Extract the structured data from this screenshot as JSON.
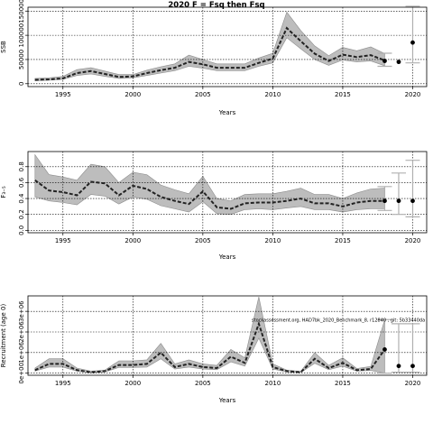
{
  "chart_data": {
    "title": "2020 F = Fsq then Fsq",
    "watermark": "stockassessment.org, HAD7bk_2020_Benchmark_8, r12840 , git: 5b33440da",
    "xlim": [
      1992.5,
      2021
    ],
    "x_ticks": [
      1995,
      2000,
      2005,
      2010,
      2015,
      2020
    ],
    "colors": {
      "band": "#bdbdbd",
      "band_edge": "#8c8c8c",
      "line": "#222222",
      "grid": "#000000",
      "point": "#000000",
      "whisker": "#b0b0b0"
    },
    "panels": [
      {
        "type": "line",
        "ylabel": "SSB",
        "xlabel": "Years",
        "ylim": [
          -6000,
          158000
        ],
        "y_ticks": [
          0,
          50000,
          100000,
          150000
        ],
        "y_ticklabels": [
          "0",
          "50000",
          "100000",
          "150000"
        ],
        "grid": true,
        "years": [
          1993,
          1994,
          1995,
          1996,
          1997,
          1998,
          1999,
          2000,
          2001,
          2002,
          2003,
          2004,
          2005,
          2006,
          2007,
          2008,
          2009,
          2010,
          2011,
          2012,
          2013,
          2014,
          2015,
          2016,
          2017,
          2018
        ],
        "values": [
          8000,
          9000,
          11000,
          22000,
          26000,
          20000,
          14000,
          15000,
          22000,
          28000,
          33000,
          45000,
          40000,
          33000,
          33000,
          33000,
          43000,
          52000,
          115000,
          88000,
          62000,
          47000,
          60000,
          55000,
          59000,
          48000
        ],
        "lower": [
          6000,
          7000,
          9000,
          17000,
          20000,
          15000,
          11000,
          12000,
          17000,
          22000,
          27000,
          36000,
          32000,
          27000,
          27000,
          27000,
          36000,
          43000,
          95000,
          72000,
          50000,
          38000,
          49000,
          45000,
          47000,
          37000
        ],
        "upper": [
          11000,
          12000,
          15000,
          29000,
          33000,
          26000,
          19000,
          19000,
          28000,
          35000,
          41000,
          59000,
          50000,
          41000,
          41000,
          41000,
          53000,
          63000,
          148000,
          110000,
          78000,
          58000,
          75000,
          68000,
          76000,
          62000
        ],
        "forecast": [
          {
            "year": 2018,
            "value": 47000,
            "lower": 36000,
            "upper": 63000
          },
          {
            "year": 2019,
            "value": 45000,
            "lower": 0,
            "upper": 0
          },
          {
            "year": 2020,
            "value": 85000,
            "lower": 43000,
            "upper": 160000
          }
        ]
      },
      {
        "type": "line",
        "ylabel": "F₃₋₅",
        "xlabel": "Years",
        "ylim": [
          -0.03,
          0.99
        ],
        "y_ticks": [
          0.0,
          0.2,
          0.4,
          0.6,
          0.8
        ],
        "y_ticklabels": [
          "0.0",
          "0.2",
          "0.4",
          "0.6",
          "0.8"
        ],
        "grid": true,
        "years": [
          1993,
          1994,
          1995,
          1996,
          1997,
          1998,
          1999,
          2000,
          2001,
          2002,
          2003,
          2004,
          2005,
          2006,
          2007,
          2008,
          2009,
          2010,
          2011,
          2012,
          2013,
          2014,
          2015,
          2016,
          2017,
          2018
        ],
        "values": [
          0.63,
          0.5,
          0.48,
          0.44,
          0.61,
          0.59,
          0.44,
          0.56,
          0.52,
          0.42,
          0.37,
          0.33,
          0.49,
          0.29,
          0.27,
          0.34,
          0.35,
          0.35,
          0.37,
          0.4,
          0.34,
          0.34,
          0.3,
          0.35,
          0.37,
          0.37
        ],
        "lower": [
          0.42,
          0.37,
          0.35,
          0.32,
          0.45,
          0.43,
          0.33,
          0.42,
          0.39,
          0.31,
          0.27,
          0.23,
          0.36,
          0.21,
          0.2,
          0.26,
          0.27,
          0.26,
          0.28,
          0.3,
          0.26,
          0.26,
          0.23,
          0.26,
          0.27,
          0.27
        ],
        "upper": [
          0.95,
          0.7,
          0.67,
          0.63,
          0.83,
          0.8,
          0.6,
          0.73,
          0.7,
          0.57,
          0.51,
          0.46,
          0.68,
          0.4,
          0.37,
          0.45,
          0.46,
          0.46,
          0.49,
          0.53,
          0.45,
          0.45,
          0.4,
          0.47,
          0.52,
          0.53
        ],
        "forecast": [
          {
            "year": 2018,
            "value": 0.37,
            "lower": 0.25,
            "upper": 0.55
          },
          {
            "year": 2019,
            "value": 0.37,
            "lower": 0.2,
            "upper": 0.72
          },
          {
            "year": 2020,
            "value": 0.37,
            "lower": 0.17,
            "upper": 0.88
          }
        ]
      },
      {
        "type": "line",
        "ylabel": "Recruitment (age 0)",
        "xlabel": "Years",
        "ylim": [
          -100000,
          3750000
        ],
        "y_ticks": [
          0,
          1000000,
          2000000,
          3000000
        ],
        "y_ticklabels": [
          "0e+00",
          "1e+06",
          "2e+06",
          "3e+06"
        ],
        "grid": true,
        "years": [
          1993,
          1994,
          1995,
          1996,
          1997,
          1998,
          1999,
          2000,
          2001,
          2002,
          2003,
          2004,
          2005,
          2006,
          2007,
          2008,
          2009,
          2010,
          2011,
          2012,
          2013,
          2014,
          2015,
          2016,
          2017,
          2018
        ],
        "values": [
          150000,
          450000,
          450000,
          150000,
          50000,
          100000,
          400000,
          400000,
          450000,
          1000000,
          300000,
          450000,
          300000,
          250000,
          800000,
          500000,
          2400000,
          300000,
          100000,
          50000,
          700000,
          250000,
          500000,
          150000,
          200000,
          1150000
        ],
        "lower": [
          100000,
          300000,
          300000,
          100000,
          30000,
          60000,
          280000,
          280000,
          300000,
          700000,
          200000,
          300000,
          200000,
          170000,
          550000,
          340000,
          1700000,
          200000,
          60000,
          30000,
          480000,
          170000,
          340000,
          100000,
          130000,
          0
        ],
        "upper": [
          250000,
          700000,
          700000,
          250000,
          100000,
          150000,
          600000,
          600000,
          650000,
          1450000,
          450000,
          650000,
          450000,
          380000,
          1150000,
          750000,
          3700000,
          450000,
          150000,
          90000,
          1000000,
          380000,
          750000,
          230000,
          330000,
          2600000
        ],
        "forecast": [
          {
            "year": 2018,
            "value": 1150000,
            "lower": 0,
            "upper": 2600000
          },
          {
            "year": 2019,
            "value": 350000,
            "lower": 50000,
            "upper": 2400000
          },
          {
            "year": 2020,
            "value": 350000,
            "lower": 50000,
            "upper": 2400000
          }
        ]
      }
    ]
  }
}
